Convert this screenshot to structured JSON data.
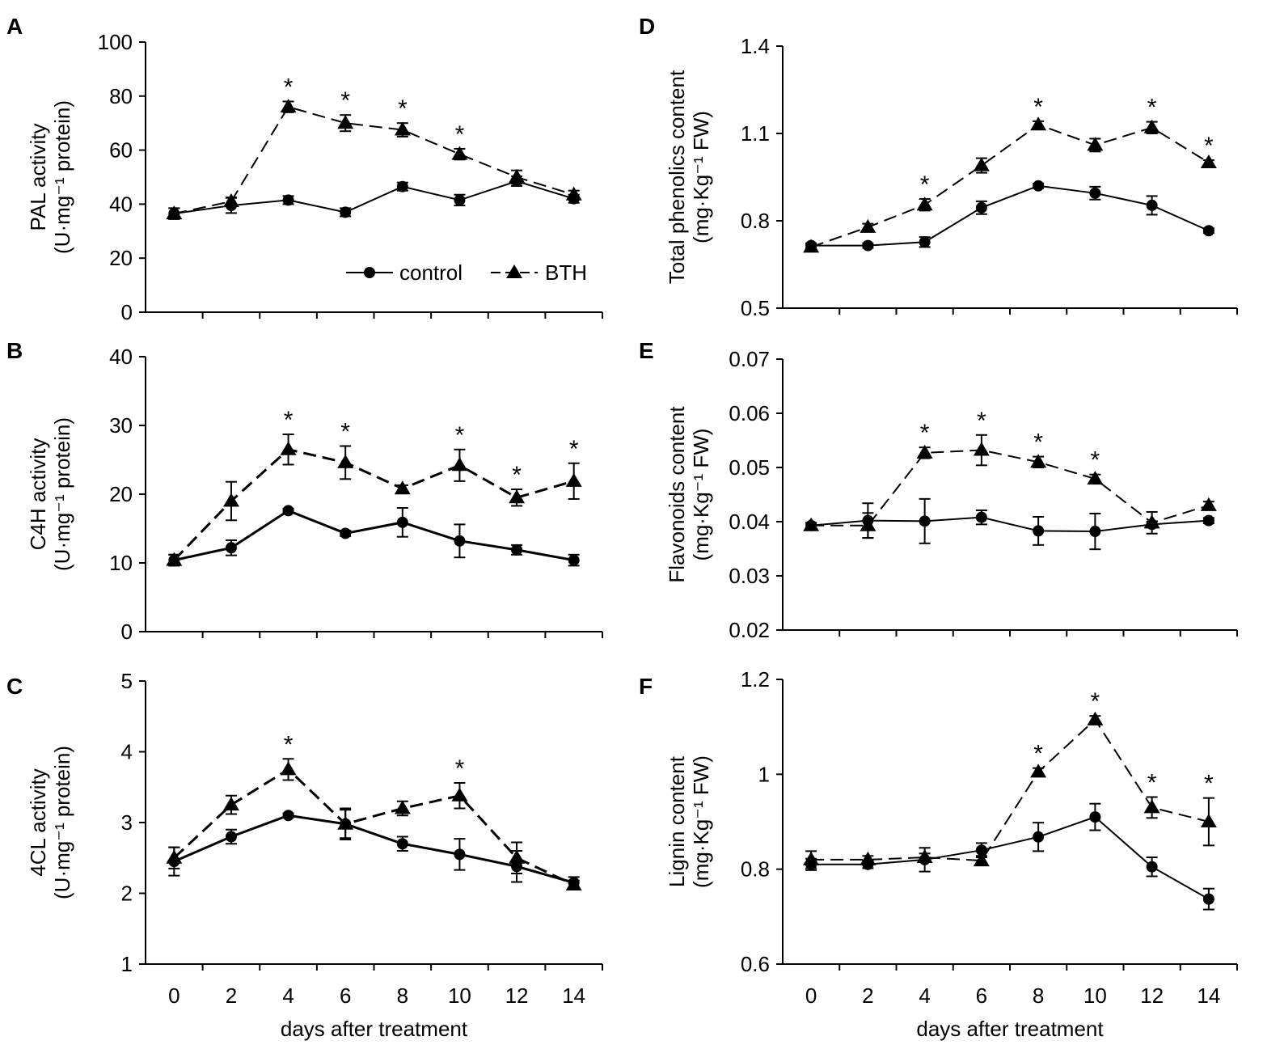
{
  "figure": {
    "xlabel": "days after treatment",
    "series_names": {
      "control": "control",
      "bth": "BTH"
    },
    "colors": {
      "line": "#000000",
      "background": "#ffffff"
    }
  },
  "chart_data": [
    {
      "type": "line",
      "panel": "A",
      "ylabel_main": "PAL activity",
      "ylabel_unit": "(U·mg⁻¹ protein)",
      "x": [
        0,
        2,
        4,
        6,
        8,
        10,
        12,
        14
      ],
      "ylim": [
        0,
        100
      ],
      "yticks": [
        "0",
        "20",
        "40",
        "60",
        "80",
        "100"
      ],
      "xtick_labels": [],
      "legend": {
        "entries": [
          "control",
          "BTH"
        ],
        "placement": "bottom-right"
      },
      "series": [
        {
          "name": "control",
          "marker": "circle",
          "dash": "solid",
          "values": [
            36.5,
            39.5,
            41.5,
            37,
            46.5,
            41.5,
            48.5,
            42
          ],
          "errors": [
            2,
            2.8,
            1.5,
            1.5,
            1.5,
            2,
            1.8,
            1.5
          ]
        },
        {
          "name": "BTH",
          "marker": "triangle",
          "dash": "dashed",
          "values": [
            36.5,
            41,
            76,
            70,
            67.5,
            58.5,
            50,
            43.5
          ],
          "errors": [
            2,
            1.5,
            2,
            3,
            2.5,
            2,
            2.5,
            1.5
          ]
        }
      ],
      "significance": [
        4,
        6,
        8,
        10
      ]
    },
    {
      "type": "line",
      "panel": "B",
      "ylabel_main": "C4H activity",
      "ylabel_unit": "(U·mg⁻¹ protein)",
      "x": [
        0,
        2,
        4,
        6,
        8,
        10,
        12,
        14
      ],
      "ylim": [
        0,
        40
      ],
      "yticks": [
        "0",
        "10",
        "20",
        "30",
        "40"
      ],
      "xtick_labels": [],
      "series": [
        {
          "name": "control",
          "marker": "circle",
          "dash": "solid",
          "values": [
            10.4,
            12.2,
            17.6,
            14.3,
            15.9,
            13.2,
            11.9,
            10.4
          ],
          "errors": [
            0.8,
            1.1,
            0.3,
            0.4,
            2.1,
            2.4,
            0.7,
            0.8
          ]
        },
        {
          "name": "BTH",
          "marker": "triangle",
          "dash": "dashed",
          "values": [
            10.4,
            19,
            26.5,
            24.6,
            20.8,
            24.2,
            19.5,
            21.9
          ],
          "errors": [
            0.8,
            2.8,
            2.2,
            2.4,
            0.5,
            2.3,
            1.2,
            2.6
          ]
        }
      ],
      "significance": [
        4,
        6,
        10,
        12,
        14
      ]
    },
    {
      "type": "line",
      "panel": "C",
      "ylabel_main": "4CL activity",
      "ylabel_unit": "(U·mg⁻¹ protein)",
      "x": [
        0,
        2,
        4,
        6,
        8,
        10,
        12,
        14
      ],
      "ylim": [
        1,
        5
      ],
      "yticks": [
        "1",
        "2",
        "3",
        "4",
        "5"
      ],
      "xtick_labels": [
        "0",
        "2",
        "4",
        "6",
        "8",
        "10",
        "12",
        "14"
      ],
      "series": [
        {
          "name": "control",
          "marker": "circle",
          "dash": "solid",
          "values": [
            2.45,
            2.8,
            3.1,
            2.98,
            2.7,
            2.55,
            2.38,
            2.15
          ],
          "errors": [
            0.2,
            0.1,
            0.03,
            0.22,
            0.1,
            0.22,
            0.22,
            0.08
          ]
        },
        {
          "name": "BTH",
          "marker": "triangle",
          "dash": "dashed",
          "values": [
            2.5,
            3.25,
            3.75,
            2.98,
            3.2,
            3.38,
            2.5,
            2.12
          ],
          "errors": [
            0.15,
            0.13,
            0.15,
            0.2,
            0.1,
            0.18,
            0.22,
            0.06
          ]
        }
      ],
      "significance": [
        4,
        10
      ]
    },
    {
      "type": "line",
      "panel": "D",
      "ylabel_main": "Total phenolics content",
      "ylabel_unit": "(mg·Kg⁻¹ FW)",
      "x": [
        0,
        2,
        4,
        6,
        8,
        10,
        12,
        14
      ],
      "ylim": [
        0.5,
        1.4
      ],
      "yticks": [
        "0.5",
        "0.8",
        "1.1",
        "1.4"
      ],
      "xtick_labels": [],
      "series": [
        {
          "name": "control",
          "marker": "circle",
          "dash": "solid",
          "values": [
            0.715,
            0.715,
            0.727,
            0.845,
            0.92,
            0.895,
            0.853,
            0.766
          ],
          "errors": [
            0.008,
            0.008,
            0.017,
            0.022,
            0.008,
            0.022,
            0.032,
            0.008
          ]
        },
        {
          "name": "BTH",
          "marker": "triangle",
          "dash": "dashed",
          "values": [
            0.71,
            0.778,
            0.855,
            0.99,
            1.13,
            1.06,
            1.12,
            1.0
          ],
          "errors": [
            0.008,
            0.012,
            0.02,
            0.025,
            0.012,
            0.022,
            0.02,
            0.008
          ]
        }
      ],
      "significance": [
        4,
        8,
        12,
        14
      ]
    },
    {
      "type": "line",
      "panel": "E",
      "ylabel_main": "Flavonoids content",
      "ylabel_unit": "(mg·Kg⁻¹ FW)",
      "x": [
        0,
        2,
        4,
        6,
        8,
        10,
        12,
        14
      ],
      "ylim": [
        0.02,
        0.07
      ],
      "yticks": [
        "0.02",
        "0.03",
        "0.04",
        "0.05",
        "0.06",
        "0.07"
      ],
      "xtick_labels": [],
      "series": [
        {
          "name": "control",
          "marker": "circle",
          "dash": "solid",
          "values": [
            0.0393,
            0.0402,
            0.0401,
            0.0408,
            0.0383,
            0.0382,
            0.0395,
            0.0402
          ],
          "errors": [
            0.0005,
            0.0032,
            0.0041,
            0.0013,
            0.0026,
            0.0033,
            0.0005,
            0.0005
          ]
        },
        {
          "name": "BTH",
          "marker": "triangle",
          "dash": "dashed",
          "values": [
            0.0393,
            0.0393,
            0.0527,
            0.0532,
            0.051,
            0.0479,
            0.0398,
            0.043
          ],
          "errors": [
            0.0005,
            0.0023,
            0.001,
            0.0028,
            0.001,
            0.0008,
            0.002,
            0.0007
          ]
        }
      ],
      "significance": [
        4,
        6,
        8,
        10
      ]
    },
    {
      "type": "line",
      "panel": "F",
      "ylabel_main": "Lignin content",
      "ylabel_unit": "(mg·Kg⁻¹ FW)",
      "x": [
        0,
        2,
        4,
        6,
        8,
        10,
        12,
        14
      ],
      "ylim": [
        0.6,
        1.2
      ],
      "yticks": [
        "0.6",
        "0.8",
        "1",
        "1.2"
      ],
      "xtick_labels": [
        "0",
        "2",
        "4",
        "6",
        "8",
        "10",
        "12",
        "14"
      ],
      "series": [
        {
          "name": "control",
          "marker": "circle",
          "dash": "solid",
          "values": [
            0.81,
            0.81,
            0.82,
            0.84,
            0.868,
            0.91,
            0.805,
            0.737
          ],
          "errors": [
            0.012,
            0.008,
            0.025,
            0.015,
            0.03,
            0.028,
            0.02,
            0.022
          ]
        },
        {
          "name": "BTH",
          "marker": "triangle",
          "dash": "dashed",
          "values": [
            0.82,
            0.82,
            0.825,
            0.818,
            1.005,
            1.115,
            0.93,
            0.9
          ],
          "errors": [
            0.018,
            0.008,
            0.008,
            0.01,
            0.008,
            0.008,
            0.022,
            0.05
          ]
        }
      ],
      "significance": [
        8,
        10,
        12,
        14
      ]
    }
  ]
}
